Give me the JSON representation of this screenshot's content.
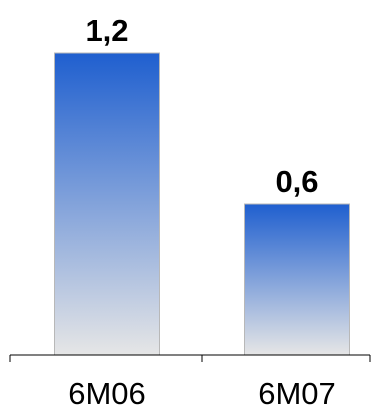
{
  "chart_data": {
    "type": "bar",
    "categories": [
      "6M06",
      "6M07"
    ],
    "values": [
      1.2,
      0.6
    ],
    "data_labels": [
      "1,2",
      "0,6"
    ],
    "title": "",
    "xlabel": "",
    "ylabel": "",
    "ylim": [
      0,
      1.2
    ],
    "grid": false,
    "legend": "none",
    "colors": {
      "bar_top": "#1f5fcf",
      "bar_bottom": "#e6e6e6",
      "bar_outline": "#b8b8b8",
      "axis": "#000000"
    }
  }
}
